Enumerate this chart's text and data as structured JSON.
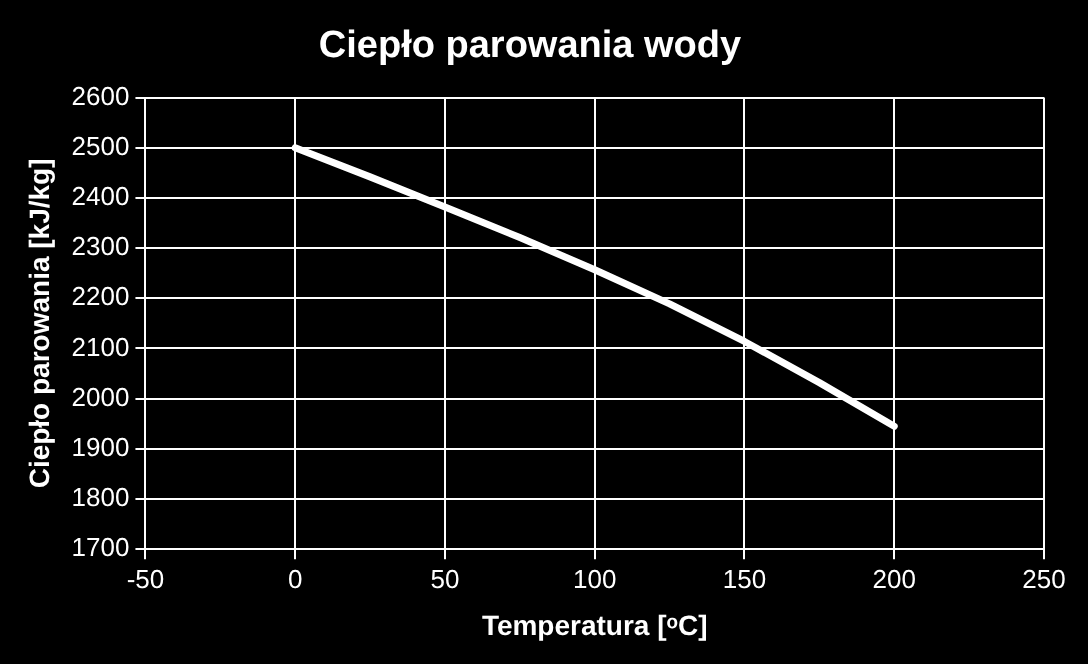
{
  "chart_data": {
    "type": "line",
    "title": "Ciepło parowania wody",
    "xlabel": "Temperatura [ᵒC]",
    "ylabel": "Ciepło parowania [kJ/kg]",
    "x": [
      0,
      25,
      50,
      75,
      100,
      125,
      150,
      175,
      200
    ],
    "series": [
      {
        "color": "#ffffff",
        "values": [
          2500,
          2442,
          2382,
          2321,
          2257,
          2189,
          2114,
          2032,
          1945
        ]
      }
    ],
    "xlim": [
      -50,
      250
    ],
    "xticks": [
      -50,
      0,
      50,
      100,
      150,
      200,
      250
    ],
    "ylim": [
      1700,
      2600
    ],
    "yticks": [
      1700,
      1800,
      1900,
      2000,
      2100,
      2200,
      2300,
      2400,
      2500,
      2600
    ],
    "grid": true,
    "legend": false,
    "marker": "none",
    "line_style": "solid"
  }
}
